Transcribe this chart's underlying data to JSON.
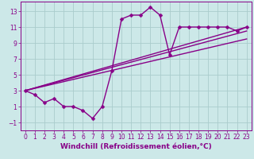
{
  "background_color": "#cce8e8",
  "grid_color": "#aacccc",
  "line_color": "#880088",
  "marker": "D",
  "markersize": 2.5,
  "linewidth": 1.0,
  "xlabel": "Windchill (Refroidissement éolien,°C)",
  "xlabel_fontsize": 6.5,
  "xlim": [
    -0.5,
    23.5
  ],
  "ylim": [
    -2.0,
    14.2
  ],
  "xticks": [
    0,
    1,
    2,
    3,
    4,
    5,
    6,
    7,
    8,
    9,
    10,
    11,
    12,
    13,
    14,
    15,
    16,
    17,
    18,
    19,
    20,
    21,
    22,
    23
  ],
  "yticks": [
    -1,
    1,
    3,
    5,
    7,
    9,
    11,
    13
  ],
  "line1_x": [
    0,
    1,
    2,
    3,
    4,
    5,
    6,
    7,
    8,
    9,
    10,
    11,
    12,
    13,
    14,
    15,
    16,
    17,
    18,
    19,
    20,
    21,
    22,
    23
  ],
  "line1_y": [
    3.0,
    2.5,
    1.5,
    2.0,
    1.0,
    1.0,
    0.5,
    -0.5,
    1.0,
    5.5,
    12.0,
    12.5,
    12.5,
    13.5,
    12.5,
    7.5,
    11.0,
    11.0,
    11.0,
    11.0,
    11.0,
    11.0,
    10.5,
    11.0
  ],
  "line2_x": [
    0,
    23
  ],
  "line2_y": [
    3.0,
    11.0
  ],
  "line3_x": [
    0,
    23
  ],
  "line3_y": [
    3.0,
    9.5
  ],
  "line4_x": [
    0,
    23
  ],
  "line4_y": [
    3.0,
    10.5
  ],
  "tick_fontsize": 5.5,
  "tick_color": "#880088"
}
